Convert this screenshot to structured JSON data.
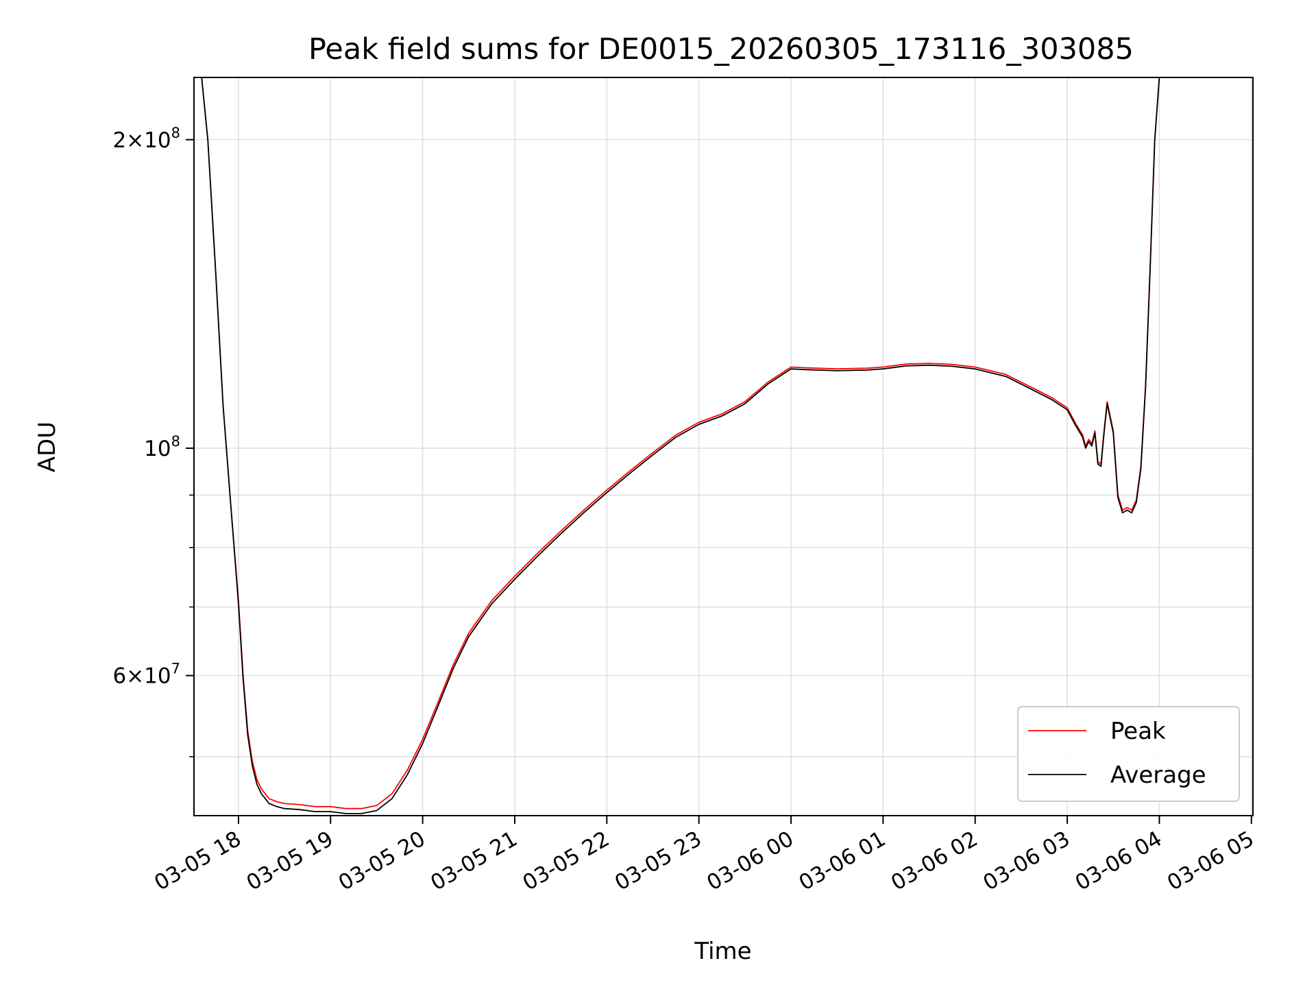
{
  "chart_data": {
    "type": "line",
    "title": "Peak field sums for DE0015_20260305_173116_303085",
    "xlabel": "Time",
    "ylabel": "ADU",
    "yscale": "log",
    "grid": true,
    "legend_position": "lower-right",
    "xlim": [
      "03-05 17:31",
      "03-06 05:01"
    ],
    "ylim": [
      43800000,
      230000000
    ],
    "x_ticks": [
      {
        "value": "03-05 18:00",
        "label": "03-05 18"
      },
      {
        "value": "03-05 19:00",
        "label": "03-05 19"
      },
      {
        "value": "03-05 20:00",
        "label": "03-05 20"
      },
      {
        "value": "03-05 21:00",
        "label": "03-05 21"
      },
      {
        "value": "03-05 22:00",
        "label": "03-05 22"
      },
      {
        "value": "03-05 23:00",
        "label": "03-05 23"
      },
      {
        "value": "03-06 00:00",
        "label": "03-06 00"
      },
      {
        "value": "03-06 01:00",
        "label": "03-06 01"
      },
      {
        "value": "03-06 02:00",
        "label": "03-06 02"
      },
      {
        "value": "03-06 03:00",
        "label": "03-06 03"
      },
      {
        "value": "03-06 04:00",
        "label": "03-06 04"
      },
      {
        "value": "03-06 05:00",
        "label": "03-06 05"
      }
    ],
    "y_ticks_major": [
      {
        "value": 200000000,
        "mantissa": "2",
        "exponent": "8"
      },
      {
        "value": 100000000,
        "mantissa": "",
        "exponent": "8"
      },
      {
        "value": 60000000,
        "mantissa": "6",
        "exponent": "7"
      }
    ],
    "y_ticks_minor": [
      50000000,
      70000000,
      80000000,
      90000000,
      300000000
    ],
    "series": [
      {
        "name": "Peak",
        "color": "#ff0000",
        "x": [
          "03-05 17:31",
          "03-05 17:36",
          "03-05 17:40",
          "03-05 17:45",
          "03-05 17:50",
          "03-05 17:55",
          "03-05 18:00",
          "03-05 18:03",
          "03-05 18:06",
          "03-05 18:09",
          "03-05 18:12",
          "03-05 18:15",
          "03-05 18:20",
          "03-05 18:25",
          "03-05 18:30",
          "03-05 18:40",
          "03-05 18:50",
          "03-05 19:00",
          "03-05 19:10",
          "03-05 19:20",
          "03-05 19:30",
          "03-05 19:40",
          "03-05 19:50",
          "03-05 20:00",
          "03-05 20:10",
          "03-05 20:20",
          "03-05 20:30",
          "03-05 20:45",
          "03-05 21:00",
          "03-05 21:15",
          "03-05 21:30",
          "03-05 21:45",
          "03-05 22:00",
          "03-05 22:15",
          "03-05 22:30",
          "03-05 22:45",
          "03-05 23:00",
          "03-05 23:15",
          "03-05 23:30",
          "03-05 23:45",
          "03-06 00:00",
          "03-06 00:10",
          "03-06 00:30",
          "03-06 00:50",
          "03-06 01:00",
          "03-06 01:15",
          "03-06 01:30",
          "03-06 01:45",
          "03-06 02:00",
          "03-06 02:20",
          "03-06 02:40",
          "03-06 02:50",
          "03-06 03:00",
          "03-06 03:05",
          "03-06 03:10",
          "03-06 03:12",
          "03-06 03:14",
          "03-06 03:16",
          "03-06 03:18",
          "03-06 03:20",
          "03-06 03:22",
          "03-06 03:24",
          "03-06 03:26",
          "03-06 03:30",
          "03-06 03:33",
          "03-06 03:36",
          "03-06 03:39",
          "03-06 03:42",
          "03-06 03:45",
          "03-06 03:48",
          "03-06 03:51",
          "03-06 03:54",
          "03-06 03:57",
          "03-06 04:00",
          "03-06 04:01"
        ],
        "values": [
          230000000,
          230000000,
          200000000,
          150000000,
          110000000,
          88000000,
          71000000,
          60000000,
          53000000,
          49500000,
          47500000,
          46500000,
          45500000,
          45200000,
          45000000,
          44900000,
          44700000,
          44700000,
          44500000,
          44500000,
          44800000,
          46000000,
          48500000,
          52000000,
          56500000,
          61500000,
          66000000,
          71000000,
          75000000,
          79000000,
          83000000,
          87000000,
          91000000,
          95000000,
          99000000,
          103000000,
          106000000,
          108000000,
          111000000,
          116000000,
          120000000,
          119800000,
          119500000,
          119700000,
          120000000,
          120800000,
          121000000,
          120700000,
          120000000,
          118000000,
          114000000,
          112000000,
          109500000,
          106000000,
          103000000,
          100500000,
          102000000,
          101000000,
          104000000,
          97000000,
          96500000,
          104000000,
          111000000,
          104000000,
          90000000,
          87000000,
          87500000,
          87000000,
          89000000,
          96000000,
          115000000,
          150000000,
          200000000,
          230000000,
          230000000
        ]
      },
      {
        "name": "Average",
        "color": "#000000",
        "x": [
          "03-05 17:31",
          "03-05 17:36",
          "03-05 17:40",
          "03-05 17:45",
          "03-05 17:50",
          "03-05 17:55",
          "03-05 18:00",
          "03-05 18:03",
          "03-05 18:06",
          "03-05 18:09",
          "03-05 18:12",
          "03-05 18:15",
          "03-05 18:20",
          "03-05 18:25",
          "03-05 18:30",
          "03-05 18:40",
          "03-05 18:50",
          "03-05 19:00",
          "03-05 19:10",
          "03-05 19:20",
          "03-05 19:30",
          "03-05 19:40",
          "03-05 19:50",
          "03-05 20:00",
          "03-05 20:10",
          "03-05 20:20",
          "03-05 20:30",
          "03-05 20:45",
          "03-05 21:00",
          "03-05 21:15",
          "03-05 21:30",
          "03-05 21:45",
          "03-05 22:00",
          "03-05 22:15",
          "03-05 22:30",
          "03-05 22:45",
          "03-05 23:00",
          "03-05 23:15",
          "03-05 23:30",
          "03-05 23:45",
          "03-06 00:00",
          "03-06 00:10",
          "03-06 00:30",
          "03-06 00:50",
          "03-06 01:00",
          "03-06 01:15",
          "03-06 01:30",
          "03-06 01:45",
          "03-06 02:00",
          "03-06 02:20",
          "03-06 02:40",
          "03-06 02:50",
          "03-06 03:00",
          "03-06 03:05",
          "03-06 03:10",
          "03-06 03:12",
          "03-06 03:14",
          "03-06 03:16",
          "03-06 03:18",
          "03-06 03:20",
          "03-06 03:22",
          "03-06 03:24",
          "03-06 03:26",
          "03-06 03:30",
          "03-06 03:33",
          "03-06 03:36",
          "03-06 03:39",
          "03-06 03:42",
          "03-06 03:45",
          "03-06 03:48",
          "03-06 03:51",
          "03-06 03:54",
          "03-06 03:57",
          "03-06 04:00",
          "03-06 04:01"
        ],
        "values": [
          230000000,
          230000000,
          200000000,
          150000000,
          110000000,
          88000000,
          70500000,
          59500000,
          52500000,
          49000000,
          47000000,
          46000000,
          45000000,
          44700000,
          44500000,
          44400000,
          44200000,
          44200000,
          44000000,
          44000000,
          44300000,
          45500000,
          48000000,
          51500000,
          56000000,
          61000000,
          65500000,
          70500000,
          74500000,
          78500000,
          82500000,
          86500000,
          90500000,
          94500000,
          98500000,
          102500000,
          105500000,
          107500000,
          110500000,
          115500000,
          119500000,
          119300000,
          119000000,
          119200000,
          119500000,
          120300000,
          120500000,
          120200000,
          119500000,
          117500000,
          113500000,
          111500000,
          109000000,
          105500000,
          102500000,
          100000000,
          101500000,
          100500000,
          103500000,
          96500000,
          96000000,
          103500000,
          110500000,
          103500000,
          89500000,
          86500000,
          87000000,
          86500000,
          88500000,
          95500000,
          114500000,
          149500000,
          199500000,
          230000000,
          230000000
        ]
      }
    ]
  }
}
